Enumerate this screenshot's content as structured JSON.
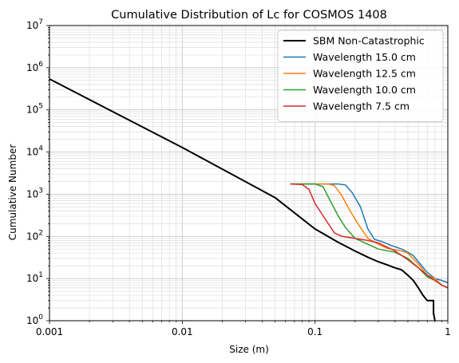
{
  "chart_data": {
    "type": "line",
    "title": "Cumulative Distribution of Lc for COSMOS 1408",
    "xlabel": "Size (m)",
    "ylabel": "Cumulative Number",
    "xscale": "log",
    "yscale": "log",
    "xlim": [
      0.001,
      1
    ],
    "ylim": [
      1,
      10000000
    ],
    "grid": "major and minor",
    "legend_placement": "top-right",
    "x_ticks": [
      {
        "value": 0.001,
        "label": "0.001"
      },
      {
        "value": 0.01,
        "label": "0.01"
      },
      {
        "value": 0.1,
        "label": "0.1"
      },
      {
        "value": 1,
        "label": "1"
      }
    ],
    "y_ticks": [
      {
        "value": 1,
        "base": "10",
        "exp": "0"
      },
      {
        "value": 10,
        "base": "10",
        "exp": "1"
      },
      {
        "value": 100,
        "base": "10",
        "exp": "2"
      },
      {
        "value": 1000,
        "base": "10",
        "exp": "3"
      },
      {
        "value": 10000,
        "base": "10",
        "exp": "4"
      },
      {
        "value": 100000,
        "base": "10",
        "exp": "5"
      },
      {
        "value": 1000000,
        "base": "10",
        "exp": "6"
      },
      {
        "value": 10000000,
        "base": "10",
        "exp": "7"
      }
    ],
    "series": [
      {
        "name": "SBM Non-Catastrophic",
        "color": "#000000",
        "width": 2,
        "points": [
          [
            0.001,
            540000
          ],
          [
            0.01,
            12800
          ],
          [
            0.05,
            830
          ],
          [
            0.1,
            150
          ],
          [
            0.15,
            72
          ],
          [
            0.2,
            45
          ],
          [
            0.25,
            32
          ],
          [
            0.3,
            25
          ],
          [
            0.35,
            21
          ],
          [
            0.4,
            18
          ],
          [
            0.45,
            16
          ],
          [
            0.5,
            12
          ],
          [
            0.55,
            9
          ],
          [
            0.6,
            6
          ],
          [
            0.65,
            4
          ],
          [
            0.7,
            3
          ],
          [
            0.78,
            3
          ],
          [
            0.78,
            1.5
          ],
          [
            0.8,
            1
          ]
        ]
      },
      {
        "name": "Wavelength 15.0 cm",
        "color": "#1f77b4",
        "width": 1.5,
        "points": [
          [
            0.065,
            1750
          ],
          [
            0.15,
            1750
          ],
          [
            0.17,
            1650
          ],
          [
            0.19,
            1100
          ],
          [
            0.22,
            500
          ],
          [
            0.25,
            150
          ],
          [
            0.28,
            85
          ],
          [
            0.32,
            75
          ],
          [
            0.38,
            60
          ],
          [
            0.45,
            50
          ],
          [
            0.5,
            42
          ],
          [
            0.55,
            35
          ],
          [
            0.6,
            25
          ],
          [
            0.7,
            14
          ],
          [
            0.8,
            10
          ],
          [
            0.9,
            9
          ],
          [
            1.0,
            8
          ]
        ]
      },
      {
        "name": "Wavelength 12.5 cm",
        "color": "#ff7f0e",
        "width": 1.5,
        "points": [
          [
            0.065,
            1750
          ],
          [
            0.125,
            1750
          ],
          [
            0.14,
            1600
          ],
          [
            0.16,
            900
          ],
          [
            0.18,
            450
          ],
          [
            0.21,
            200
          ],
          [
            0.25,
            90
          ],
          [
            0.3,
            65
          ],
          [
            0.35,
            52
          ],
          [
            0.45,
            45
          ],
          [
            0.5,
            40
          ],
          [
            0.6,
            22
          ],
          [
            0.7,
            12
          ],
          [
            0.8,
            10
          ],
          [
            0.9,
            7
          ],
          [
            1.0,
            6
          ]
        ]
      },
      {
        "name": "Wavelength 10.0 cm",
        "color": "#2ca02c",
        "width": 1.5,
        "points": [
          [
            0.065,
            1750
          ],
          [
            0.1,
            1750
          ],
          [
            0.115,
            1500
          ],
          [
            0.13,
            700
          ],
          [
            0.15,
            300
          ],
          [
            0.17,
            160
          ],
          [
            0.2,
            90
          ],
          [
            0.25,
            65
          ],
          [
            0.3,
            50
          ],
          [
            0.4,
            42
          ],
          [
            0.5,
            30
          ],
          [
            0.6,
            18
          ],
          [
            0.7,
            11
          ],
          [
            0.8,
            9
          ],
          [
            0.9,
            7
          ],
          [
            1.0,
            6
          ]
        ]
      },
      {
        "name": "Wavelength 7.5 cm",
        "color": "#d62728",
        "width": 1.5,
        "points": [
          [
            0.065,
            1750
          ],
          [
            0.08,
            1700
          ],
          [
            0.09,
            1300
          ],
          [
            0.1,
            600
          ],
          [
            0.12,
            250
          ],
          [
            0.14,
            120
          ],
          [
            0.16,
            100
          ],
          [
            0.2,
            90
          ],
          [
            0.25,
            80
          ],
          [
            0.3,
            70
          ],
          [
            0.4,
            45
          ],
          [
            0.5,
            28
          ],
          [
            0.6,
            18
          ],
          [
            0.7,
            12
          ],
          [
            0.8,
            9
          ],
          [
            0.9,
            7
          ],
          [
            1.0,
            6
          ]
        ]
      }
    ]
  }
}
